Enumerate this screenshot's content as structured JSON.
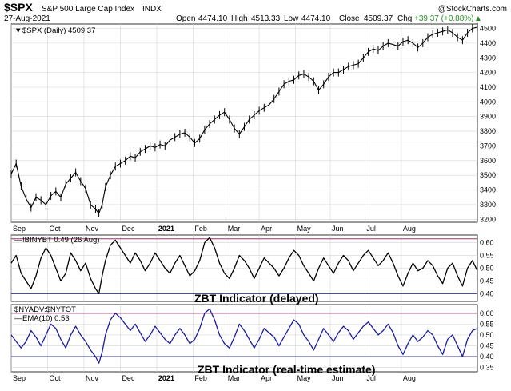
{
  "header": {
    "ticker": "$SPX",
    "name": "S&P 500 Large Cap Index",
    "exchange": "INDX",
    "date": "27-Aug-2021",
    "watermark": "@StockCharts.com",
    "ohlc": [
      {
        "label": "Open",
        "value": "4474.10"
      },
      {
        "label": "High",
        "value": "4513.33"
      },
      {
        "label": "Low",
        "value": "4474.10"
      },
      {
        "label": "Close",
        "value": "4509.37"
      }
    ],
    "chg_label": "Chg",
    "chg_value": "+39.37 (+0.88%)",
    "chg_arrow": "▲"
  },
  "colors": {
    "price": "#000000",
    "zbt_delayed": "#000000",
    "zbt_realtime": "#1c1c9c",
    "band_upper": "#8b3a6a",
    "band_lower": "#3a3a8a",
    "grid": "#d4d4d4",
    "chg": "#2a8a2a"
  },
  "x_axis": {
    "labels": [
      "Sep",
      "Oct",
      "Nov",
      "Dec",
      "2021",
      "Feb",
      "Mar",
      "Apr",
      "May",
      "Jun",
      "Jul",
      "Aug"
    ],
    "bold_index": 4
  },
  "panels": {
    "price": {
      "legend": "$SPX (Daily) 4509.37",
      "legend_icon": "▼"
    },
    "zbt_delayed": {
      "legend": "!BINYBT 0.49 (26 Aug)",
      "legend_icon": "—",
      "annotation": "ZBT Indicator (delayed)"
    },
    "zbt_realtime": {
      "legend_1": "$NYADV:$NYTOT",
      "legend_2": "EMA(10) 0.53",
      "legend_icon": "—",
      "annotation": "ZBT Indicator (real-time estimate)"
    }
  },
  "chart_data": [
    {
      "type": "line",
      "title": "$SPX (Daily) 4509.37",
      "x": [
        "Sep",
        "Oct",
        "Nov",
        "Dec",
        "2021",
        "Feb",
        "Mar",
        "Apr",
        "May",
        "Jun",
        "Jul",
        "Aug"
      ],
      "series": [
        {
          "name": "$SPX (Daily) 4509.37",
          "values": [
            3426,
            3380,
            3270,
            3638,
            3718,
            3773,
            3901,
            3973,
            4181,
            4204,
            4319,
            4395
          ]
        }
      ],
      "y_ticks": [
        3200,
        3300,
        3400,
        3500,
        3600,
        3700,
        3800,
        3900,
        4000,
        4100,
        4200,
        4300,
        4400,
        4500
      ],
      "ylim": [
        3180,
        4530
      ],
      "path": [
        [
          0,
          3508
        ],
        [
          3,
          3580
        ],
        [
          6,
          3425
        ],
        [
          9,
          3340
        ],
        [
          12,
          3280
        ],
        [
          15,
          3350
        ],
        [
          18,
          3330
        ],
        [
          21,
          3300
        ],
        [
          24,
          3360
        ],
        [
          27,
          3390
        ],
        [
          30,
          3350
        ],
        [
          33,
          3440
        ],
        [
          36,
          3480
        ],
        [
          39,
          3520
        ],
        [
          42,
          3460
        ],
        [
          45,
          3410
        ],
        [
          48,
          3300
        ],
        [
          51,
          3270
        ],
        [
          53,
          3240
        ],
        [
          55,
          3300
        ],
        [
          57,
          3420
        ],
        [
          60,
          3500
        ],
        [
          63,
          3560
        ],
        [
          66,
          3580
        ],
        [
          69,
          3600
        ],
        [
          72,
          3630
        ],
        [
          75,
          3620
        ],
        [
          78,
          3660
        ],
        [
          81,
          3680
        ],
        [
          84,
          3700
        ],
        [
          87,
          3690
        ],
        [
          90,
          3710
        ],
        [
          93,
          3700
        ],
        [
          96,
          3740
        ],
        [
          99,
          3760
        ],
        [
          102,
          3780
        ],
        [
          105,
          3790
        ],
        [
          108,
          3760
        ],
        [
          111,
          3720
        ],
        [
          114,
          3750
        ],
        [
          117,
          3810
        ],
        [
          120,
          3850
        ],
        [
          123,
          3880
        ],
        [
          126,
          3910
        ],
        [
          129,
          3930
        ],
        [
          132,
          3880
        ],
        [
          135,
          3820
        ],
        [
          138,
          3780
        ],
        [
          141,
          3830
        ],
        [
          144,
          3880
        ],
        [
          147,
          3910
        ],
        [
          150,
          3940
        ],
        [
          153,
          3960
        ],
        [
          156,
          3980
        ],
        [
          159,
          4020
        ],
        [
          162,
          4070
        ],
        [
          165,
          4120
        ],
        [
          168,
          4140
        ],
        [
          171,
          4150
        ],
        [
          174,
          4180
        ],
        [
          177,
          4190
        ],
        [
          180,
          4170
        ],
        [
          183,
          4140
        ],
        [
          186,
          4080
        ],
        [
          189,
          4120
        ],
        [
          192,
          4170
        ],
        [
          195,
          4200
        ],
        [
          198,
          4200
        ],
        [
          201,
          4220
        ],
        [
          204,
          4240
        ],
        [
          207,
          4250
        ],
        [
          210,
          4260
        ],
        [
          213,
          4300
        ],
        [
          216,
          4340
        ],
        [
          219,
          4360
        ],
        [
          222,
          4350
        ],
        [
          225,
          4380
        ],
        [
          228,
          4400
        ],
        [
          231,
          4390
        ],
        [
          234,
          4380
        ],
        [
          237,
          4410
        ],
        [
          240,
          4420
        ],
        [
          243,
          4400
        ],
        [
          246,
          4370
        ],
        [
          249,
          4400
        ],
        [
          252,
          4440
        ],
        [
          255,
          4460
        ],
        [
          258,
          4470
        ],
        [
          261,
          4480
        ],
        [
          264,
          4490
        ],
        [
          267,
          4470
        ],
        [
          270,
          4440
        ],
        [
          273,
          4420
        ],
        [
          276,
          4470
        ],
        [
          279,
          4500
        ],
        [
          282,
          4509
        ]
      ]
    },
    {
      "type": "line",
      "title": "!BINYBT 0.49 (26 Aug)",
      "series": [
        {
          "name": "!BINYBT",
          "last": 0.49
        }
      ],
      "y_ticks": [
        0.4,
        0.45,
        0.5,
        0.55,
        0.6
      ],
      "ylim": [
        0.37,
        0.63
      ],
      "bands": [
        0.4,
        0.615
      ],
      "path": [
        [
          0,
          0.52
        ],
        [
          3,
          0.55
        ],
        [
          6,
          0.48
        ],
        [
          9,
          0.45
        ],
        [
          12,
          0.42
        ],
        [
          15,
          0.47
        ],
        [
          18,
          0.54
        ],
        [
          21,
          0.58
        ],
        [
          24,
          0.55
        ],
        [
          27,
          0.5
        ],
        [
          30,
          0.45
        ],
        [
          33,
          0.48
        ],
        [
          36,
          0.56
        ],
        [
          39,
          0.53
        ],
        [
          42,
          0.49
        ],
        [
          45,
          0.52
        ],
        [
          48,
          0.46
        ],
        [
          51,
          0.42
        ],
        [
          53,
          0.4
        ],
        [
          55,
          0.47
        ],
        [
          57,
          0.53
        ],
        [
          60,
          0.59
        ],
        [
          63,
          0.61
        ],
        [
          66,
          0.58
        ],
        [
          69,
          0.55
        ],
        [
          72,
          0.52
        ],
        [
          75,
          0.56
        ],
        [
          78,
          0.53
        ],
        [
          81,
          0.49
        ],
        [
          84,
          0.52
        ],
        [
          87,
          0.56
        ],
        [
          90,
          0.53
        ],
        [
          93,
          0.5
        ],
        [
          96,
          0.48
        ],
        [
          99,
          0.52
        ],
        [
          102,
          0.55
        ],
        [
          105,
          0.51
        ],
        [
          108,
          0.47
        ],
        [
          111,
          0.49
        ],
        [
          114,
          0.53
        ],
        [
          117,
          0.6
        ],
        [
          120,
          0.62
        ],
        [
          123,
          0.58
        ],
        [
          126,
          0.52
        ],
        [
          129,
          0.48
        ],
        [
          132,
          0.46
        ],
        [
          135,
          0.5
        ],
        [
          138,
          0.55
        ],
        [
          141,
          0.53
        ],
        [
          144,
          0.5
        ],
        [
          147,
          0.46
        ],
        [
          150,
          0.5
        ],
        [
          153,
          0.54
        ],
        [
          156,
          0.52
        ],
        [
          159,
          0.5
        ],
        [
          162,
          0.47
        ],
        [
          165,
          0.5
        ],
        [
          168,
          0.54
        ],
        [
          171,
          0.57
        ],
        [
          174,
          0.55
        ],
        [
          177,
          0.51
        ],
        [
          180,
          0.48
        ],
        [
          183,
          0.45
        ],
        [
          186,
          0.5
        ],
        [
          189,
          0.54
        ],
        [
          192,
          0.51
        ],
        [
          195,
          0.48
        ],
        [
          198,
          0.52
        ],
        [
          201,
          0.55
        ],
        [
          204,
          0.53
        ],
        [
          207,
          0.49
        ],
        [
          210,
          0.52
        ],
        [
          213,
          0.55
        ],
        [
          216,
          0.57
        ],
        [
          219,
          0.54
        ],
        [
          222,
          0.51
        ],
        [
          225,
          0.53
        ],
        [
          228,
          0.56
        ],
        [
          231,
          0.52
        ],
        [
          234,
          0.47
        ],
        [
          237,
          0.43
        ],
        [
          240,
          0.48
        ],
        [
          243,
          0.52
        ],
        [
          246,
          0.49
        ],
        [
          249,
          0.5
        ],
        [
          252,
          0.53
        ],
        [
          255,
          0.51
        ],
        [
          258,
          0.47
        ],
        [
          261,
          0.44
        ],
        [
          264,
          0.5
        ],
        [
          267,
          0.52
        ],
        [
          270,
          0.47
        ],
        [
          273,
          0.43
        ],
        [
          276,
          0.5
        ],
        [
          279,
          0.53
        ],
        [
          282,
          0.49
        ]
      ]
    },
    {
      "type": "line",
      "title": "$NYADV:$NYTOT EMA(10) 0.53",
      "series": [
        {
          "name": "EMA(10)",
          "last": 0.53
        }
      ],
      "y_ticks": [
        0.35,
        0.4,
        0.45,
        0.5,
        0.55,
        0.6
      ],
      "ylim": [
        0.33,
        0.64
      ],
      "bands": [
        0.4,
        0.6
      ],
      "path": [
        [
          0,
          0.5
        ],
        [
          3,
          0.47
        ],
        [
          6,
          0.44
        ],
        [
          9,
          0.47
        ],
        [
          12,
          0.52
        ],
        [
          15,
          0.49
        ],
        [
          18,
          0.45
        ],
        [
          21,
          0.5
        ],
        [
          24,
          0.55
        ],
        [
          27,
          0.53
        ],
        [
          30,
          0.48
        ],
        [
          33,
          0.44
        ],
        [
          36,
          0.5
        ],
        [
          39,
          0.54
        ],
        [
          42,
          0.5
        ],
        [
          45,
          0.47
        ],
        [
          48,
          0.43
        ],
        [
          51,
          0.4
        ],
        [
          53,
          0.37
        ],
        [
          55,
          0.42
        ],
        [
          57,
          0.5
        ],
        [
          60,
          0.57
        ],
        [
          63,
          0.6
        ],
        [
          66,
          0.58
        ],
        [
          69,
          0.55
        ],
        [
          72,
          0.52
        ],
        [
          75,
          0.55
        ],
        [
          78,
          0.51
        ],
        [
          81,
          0.47
        ],
        [
          84,
          0.5
        ],
        [
          87,
          0.54
        ],
        [
          90,
          0.51
        ],
        [
          93,
          0.48
        ],
        [
          96,
          0.46
        ],
        [
          99,
          0.5
        ],
        [
          102,
          0.53
        ],
        [
          105,
          0.5
        ],
        [
          108,
          0.46
        ],
        [
          111,
          0.48
        ],
        [
          114,
          0.53
        ],
        [
          117,
          0.6
        ],
        [
          120,
          0.62
        ],
        [
          123,
          0.57
        ],
        [
          126,
          0.5
        ],
        [
          129,
          0.46
        ],
        [
          132,
          0.44
        ],
        [
          135,
          0.49
        ],
        [
          138,
          0.55
        ],
        [
          141,
          0.52
        ],
        [
          144,
          0.48
        ],
        [
          147,
          0.44
        ],
        [
          150,
          0.48
        ],
        [
          153,
          0.53
        ],
        [
          156,
          0.51
        ],
        [
          159,
          0.49
        ],
        [
          162,
          0.45
        ],
        [
          165,
          0.49
        ],
        [
          168,
          0.53
        ],
        [
          171,
          0.57
        ],
        [
          174,
          0.55
        ],
        [
          177,
          0.5
        ],
        [
          180,
          0.47
        ],
        [
          183,
          0.43
        ],
        [
          186,
          0.48
        ],
        [
          189,
          0.53
        ],
        [
          192,
          0.5
        ],
        [
          195,
          0.47
        ],
        [
          198,
          0.51
        ],
        [
          201,
          0.54
        ],
        [
          204,
          0.52
        ],
        [
          207,
          0.48
        ],
        [
          210,
          0.51
        ],
        [
          213,
          0.54
        ],
        [
          216,
          0.56
        ],
        [
          219,
          0.53
        ],
        [
          222,
          0.5
        ],
        [
          225,
          0.52
        ],
        [
          228,
          0.55
        ],
        [
          231,
          0.51
        ],
        [
          234,
          0.45
        ],
        [
          237,
          0.41
        ],
        [
          240,
          0.46
        ],
        [
          243,
          0.5
        ],
        [
          246,
          0.47
        ],
        [
          249,
          0.49
        ],
        [
          252,
          0.52
        ],
        [
          255,
          0.5
        ],
        [
          258,
          0.45
        ],
        [
          261,
          0.41
        ],
        [
          264,
          0.48
        ],
        [
          267,
          0.5
        ],
        [
          270,
          0.45
        ],
        [
          273,
          0.4
        ],
        [
          276,
          0.48
        ],
        [
          279,
          0.52
        ],
        [
          282,
          0.53
        ]
      ]
    }
  ]
}
